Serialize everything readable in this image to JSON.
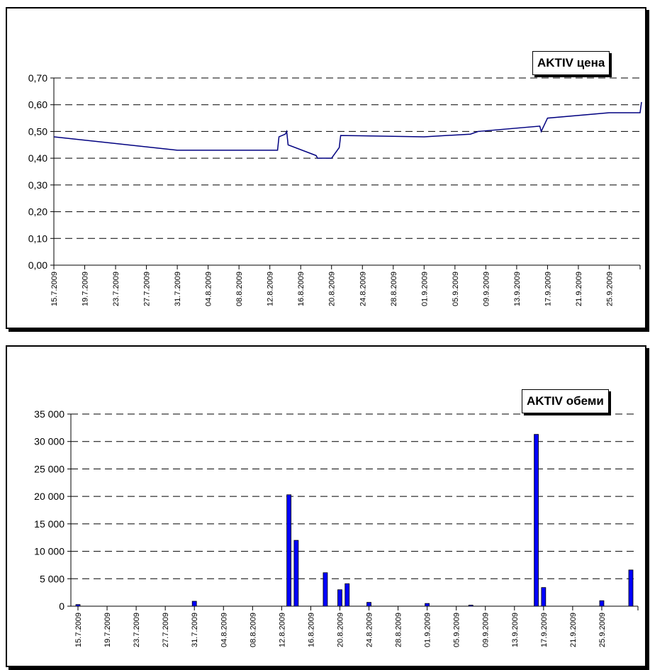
{
  "chart_data": [
    {
      "id": "price",
      "type": "line",
      "title": "AKTIV цена",
      "ylim": [
        0,
        0.7
      ],
      "yticks": [
        "0,00",
        "0,10",
        "0,20",
        "0,30",
        "0,40",
        "0,50",
        "0,60",
        "0,70"
      ],
      "ytick_values": [
        0,
        0.1,
        0.2,
        0.3,
        0.4,
        0.5,
        0.6,
        0.7
      ],
      "grid": true,
      "xticks": [
        "15.7.2009",
        "19.7.2009",
        "23.7.2009",
        "27.7.2009",
        "31.7.2009",
        "04.8.2009",
        "08.8.2009",
        "12.8.2009",
        "16.8.2009",
        "20.8.2009",
        "24.8.2009",
        "28.8.2009",
        "01.9.2009",
        "05.9.2009",
        "09.9.2009",
        "13.9.2009",
        "17.9.2009",
        "21.9.2009",
        "25.9.2009"
      ],
      "x_start": "15.7.2009",
      "x_end": "29.9.2009",
      "series": [
        {
          "color": "#000080",
          "points": [
            [
              "15.7.2009",
              0.48
            ],
            [
              "31.7.2009",
              0.43
            ],
            [
              "13.8.2009",
              0.43
            ],
            [
              "13.8.2009",
              0.48
            ],
            [
              "14.8.2009",
              0.49
            ],
            [
              "14.8.2009",
              0.5
            ],
            [
              "14.8.2009",
              0.45
            ],
            [
              "18.8.2009",
              0.41
            ],
            [
              "18.8.2009",
              0.4
            ],
            [
              "20.8.2009",
              0.4
            ],
            [
              "21.8.2009",
              0.44
            ],
            [
              "21.8.2009",
              0.485
            ],
            [
              "01.9.2009",
              0.48
            ],
            [
              "07.9.2009",
              0.49
            ],
            [
              "08.9.2009",
              0.5
            ],
            [
              "16.9.2009",
              0.52
            ],
            [
              "16.9.2009",
              0.5
            ],
            [
              "17.9.2009",
              0.55
            ],
            [
              "25.9.2009",
              0.57
            ],
            [
              "29.9.2009",
              0.57
            ],
            [
              "29.9.2009",
              0.61
            ]
          ]
        }
      ]
    },
    {
      "id": "volume",
      "type": "bar",
      "title": "AKTIV обеми",
      "ylim": [
        0,
        35000
      ],
      "yticks": [
        "0",
        "5 000",
        "10 000",
        "15 000",
        "20 000",
        "25 000",
        "30 000",
        "35 000"
      ],
      "ytick_values": [
        0,
        5000,
        10000,
        15000,
        20000,
        25000,
        30000,
        35000
      ],
      "grid": true,
      "xticks": [
        "15.7.2009",
        "19.7.2009",
        "23.7.2009",
        "27.7.2009",
        "31.7.2009",
        "04.8.2009",
        "08.8.2009",
        "12.8.2009",
        "16.8.2009",
        "20.8.2009",
        "24.8.2009",
        "28.8.2009",
        "01.9.2009",
        "05.9.2009",
        "09.9.2009",
        "13.9.2009",
        "17.9.2009",
        "21.9.2009",
        "25.9.2009"
      ],
      "x_start": "15.7.2009",
      "x_end": "29.9.2009",
      "bar_color": "#0000ff",
      "bars": [
        [
          "15.7.2009",
          300
        ],
        [
          "31.7.2009",
          900
        ],
        [
          "13.8.2009",
          20300
        ],
        [
          "14.8.2009",
          12000
        ],
        [
          "18.8.2009",
          6100
        ],
        [
          "20.8.2009",
          3000
        ],
        [
          "21.8.2009",
          4100
        ],
        [
          "24.8.2009",
          700
        ],
        [
          "01.9.2009",
          500
        ],
        [
          "07.9.2009",
          200
        ],
        [
          "16.9.2009",
          31300
        ],
        [
          "17.9.2009",
          3400
        ],
        [
          "25.9.2009",
          1000
        ],
        [
          "29.9.2009",
          6600
        ]
      ]
    }
  ]
}
